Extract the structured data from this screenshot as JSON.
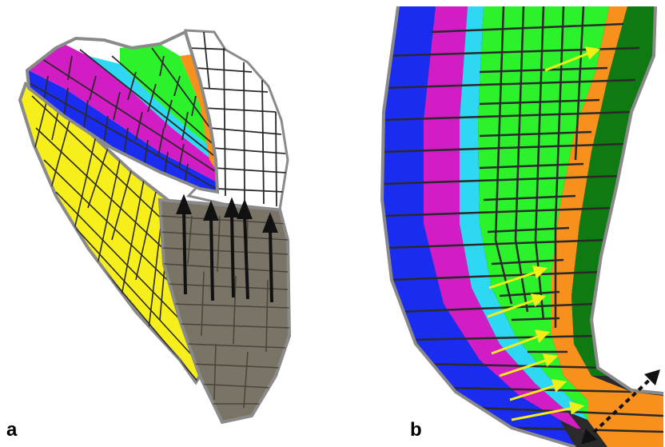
{
  "panels": [
    {
      "label": "a"
    },
    {
      "label": "b"
    }
  ],
  "colors": {
    "blue": "#1a2cf0",
    "magenta": "#d21cc4",
    "cyan": "#2fd8f2",
    "green": "#2cf22c",
    "orange": "#f7901c",
    "dark_green": "#0f7a12",
    "yellow": "#f7ef1c",
    "gray": "#7a7466",
    "white": "#ffffff",
    "wall": "#2a2a2a",
    "outline": "#8a8a8a",
    "black_arrow": "#111111",
    "yellow_arrow": "#f2ee18"
  }
}
